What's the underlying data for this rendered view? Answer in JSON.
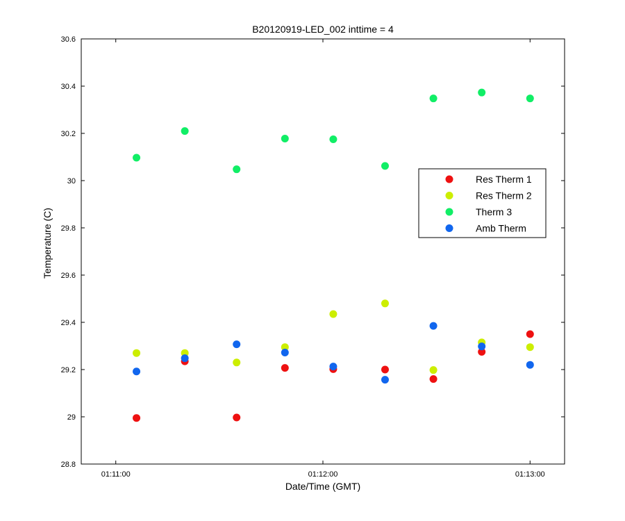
{
  "chart_data": {
    "type": "scatter",
    "title": "B20120919-LED_002 inttime = 4",
    "xlabel": "Date/Time (GMT)",
    "ylabel": "Temperature (C)",
    "x_ticks": [
      "01:11:00",
      "01:12:00",
      "01:13:00"
    ],
    "xlim": [
      "01:10:50",
      "01:13:10"
    ],
    "ylim": [
      28.8,
      30.6
    ],
    "y_ticks": [
      "28.8",
      "29",
      "29.2",
      "29.4",
      "29.6",
      "29.8",
      "30",
      "30.2",
      "30.4",
      "30.6"
    ],
    "grid": false,
    "legend_position": "right",
    "x": [
      "01:11:06",
      "01:11:20",
      "01:11:35",
      "01:11:49",
      "01:12:03",
      "01:12:18",
      "01:12:32",
      "01:12:46",
      "01:13:00"
    ],
    "series": [
      {
        "name": "Res Therm 1",
        "color": "#ee1111",
        "values": [
          28.995,
          29.235,
          28.997,
          29.207,
          29.202,
          29.2,
          29.16,
          29.275,
          29.35
        ]
      },
      {
        "name": "Res Therm 2",
        "color": "#ccee00",
        "values": [
          29.27,
          29.27,
          29.23,
          29.295,
          29.435,
          29.48,
          29.198,
          29.315,
          29.295
        ]
      },
      {
        "name": "Therm 3",
        "color": "#11ee66",
        "values": [
          30.097,
          30.21,
          30.048,
          30.178,
          30.175,
          30.062,
          30.348,
          30.373,
          30.348
        ]
      },
      {
        "name": "Amb Therm",
        "color": "#1166ee",
        "values": [
          29.192,
          29.248,
          29.307,
          29.272,
          29.213,
          29.157,
          29.385,
          29.298,
          29.22
        ]
      }
    ]
  }
}
